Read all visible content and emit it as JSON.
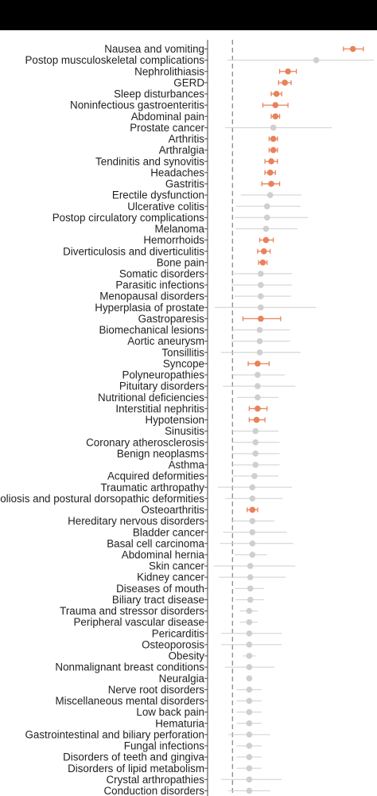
{
  "chart_data": {
    "type": "forest",
    "reference_line": 1,
    "xlim": [
      0.8,
      2.35
    ],
    "colors": {
      "significant": "#e8825a",
      "nonsignificant": "#cfcfcf",
      "reference": "#8a8a8a",
      "axis": "#444444"
    },
    "categories": [
      "Nausea and vomiting",
      "Postop musculoskeletal complications",
      "Nephrolithiasis",
      "GERD",
      "Sleep disturbances",
      "Noninfectious gastroenteritis",
      "Abdominal pain",
      "Prostate cancer",
      "Arthritis",
      "Arthralgia",
      "Tendinitis and synovitis",
      "Headaches",
      "Gastritis",
      "Erectile dysfunction",
      "Ulcerative colitis",
      "Postop circulatory complications",
      "Melanoma",
      "Hemorrhoids",
      "Diverticulosis and diverticulitis",
      "Bone pain",
      "Somatic disorders",
      "Parasitic infections",
      "Menopausal disorders",
      "Hyperplasia of prostate",
      "Gastroparesis",
      "Biomechanical lesions",
      "Aortic aneurysm",
      "Tonsillitis",
      "Syncope",
      "Polyneuropathies",
      "Pituitary disorders",
      "Nutritional deficiencies",
      "Interstitial nephritis",
      "Hypotension",
      "Sinusitis",
      "Coronary atherosclerosis",
      "Benign neoplasms",
      "Asthma",
      "Acquired deformities",
      "Traumatic arthropathy",
      "Scoliosis and postural dorsopathic deformities",
      "Osteoarthritis",
      "Hereditary nervous disorders",
      "Bladder cancer",
      "Basal cell carcinoma",
      "Abdominal hernia",
      "Skin cancer",
      "Kidney cancer",
      "Diseases of mouth",
      "Biliary tract disease",
      "Trauma and stressor disorders",
      "Peripheral vascular disease",
      "Pericarditis",
      "Osteoporosis",
      "Obesity",
      "Nonmalignant breast conditions",
      "Neuralgia",
      "Nerve root disorders",
      "Miscellaneous mental disorders",
      "Low back pain",
      "Hematuria",
      "Gastrointestinal and biliary perforation",
      "Fungal infections",
      "Disorders of teeth and gingiva",
      "Disorders of lipid metabolism",
      "Crystal arthropathies",
      "Conduction disorders"
    ],
    "estimates": [
      {
        "est": 2.15,
        "lo": 2.06,
        "hi": 2.25,
        "sig": true
      },
      {
        "est": 1.8,
        "lo": 0.95,
        "hi": 2.35,
        "sig": false
      },
      {
        "est": 1.53,
        "lo": 1.45,
        "hi": 1.61,
        "sig": true
      },
      {
        "est": 1.5,
        "lo": 1.44,
        "hi": 1.56,
        "sig": true
      },
      {
        "est": 1.42,
        "lo": 1.37,
        "hi": 1.47,
        "sig": true
      },
      {
        "est": 1.41,
        "lo": 1.29,
        "hi": 1.53,
        "sig": true
      },
      {
        "est": 1.41,
        "lo": 1.37,
        "hi": 1.45,
        "sig": true
      },
      {
        "est": 1.39,
        "lo": 0.93,
        "hi": 1.95,
        "sig": false
      },
      {
        "est": 1.39,
        "lo": 1.35,
        "hi": 1.43,
        "sig": true
      },
      {
        "est": 1.39,
        "lo": 1.35,
        "hi": 1.43,
        "sig": true
      },
      {
        "est": 1.37,
        "lo": 1.31,
        "hi": 1.43,
        "sig": true
      },
      {
        "est": 1.36,
        "lo": 1.31,
        "hi": 1.41,
        "sig": true
      },
      {
        "est": 1.37,
        "lo": 1.28,
        "hi": 1.45,
        "sig": true
      },
      {
        "est": 1.36,
        "lo": 1.08,
        "hi": 1.66,
        "sig": false
      },
      {
        "est": 1.33,
        "lo": 1.03,
        "hi": 1.65,
        "sig": false
      },
      {
        "est": 1.33,
        "lo": 1.02,
        "hi": 1.72,
        "sig": false
      },
      {
        "est": 1.32,
        "lo": 1.03,
        "hi": 1.62,
        "sig": false
      },
      {
        "est": 1.32,
        "lo": 1.26,
        "hi": 1.39,
        "sig": true
      },
      {
        "est": 1.3,
        "lo": 1.24,
        "hi": 1.36,
        "sig": true
      },
      {
        "est": 1.29,
        "lo": 1.25,
        "hi": 1.33,
        "sig": true
      },
      {
        "est": 1.27,
        "lo": 0.99,
        "hi": 1.57,
        "sig": false
      },
      {
        "est": 1.27,
        "lo": 0.99,
        "hi": 1.57,
        "sig": false
      },
      {
        "est": 1.27,
        "lo": 1.02,
        "hi": 1.56,
        "sig": false
      },
      {
        "est": 1.27,
        "lo": 0.83,
        "hi": 1.8,
        "sig": false
      },
      {
        "est": 1.27,
        "lo": 1.1,
        "hi": 1.46,
        "sig": true
      },
      {
        "est": 1.26,
        "lo": 0.99,
        "hi": 1.55,
        "sig": false
      },
      {
        "est": 1.26,
        "lo": 0.99,
        "hi": 1.55,
        "sig": false
      },
      {
        "est": 1.26,
        "lo": 0.89,
        "hi": 1.65,
        "sig": false
      },
      {
        "est": 1.24,
        "lo": 1.15,
        "hi": 1.35,
        "sig": true
      },
      {
        "est": 1.24,
        "lo": 1.0,
        "hi": 1.5,
        "sig": false
      },
      {
        "est": 1.24,
        "lo": 0.91,
        "hi": 1.6,
        "sig": false
      },
      {
        "est": 1.24,
        "lo": 1.04,
        "hi": 1.44,
        "sig": false
      },
      {
        "est": 1.24,
        "lo": 1.16,
        "hi": 1.33,
        "sig": true
      },
      {
        "est": 1.23,
        "lo": 1.16,
        "hi": 1.31,
        "sig": true
      },
      {
        "est": 1.22,
        "lo": 1.0,
        "hi": 1.44,
        "sig": false
      },
      {
        "est": 1.22,
        "lo": 1.0,
        "hi": 1.45,
        "sig": false
      },
      {
        "est": 1.22,
        "lo": 1.0,
        "hi": 1.45,
        "sig": false
      },
      {
        "est": 1.22,
        "lo": 1.0,
        "hi": 1.45,
        "sig": false
      },
      {
        "est": 1.21,
        "lo": 1.0,
        "hi": 1.44,
        "sig": false
      },
      {
        "est": 1.19,
        "lo": 0.86,
        "hi": 1.57,
        "sig": false
      },
      {
        "est": 1.19,
        "lo": 0.93,
        "hi": 1.48,
        "sig": false
      },
      {
        "est": 1.19,
        "lo": 1.14,
        "hi": 1.24,
        "sig": true
      },
      {
        "est": 1.19,
        "lo": 0.99,
        "hi": 1.4,
        "sig": false
      },
      {
        "est": 1.19,
        "lo": 0.91,
        "hi": 1.52,
        "sig": false
      },
      {
        "est": 1.19,
        "lo": 0.88,
        "hi": 1.58,
        "sig": false
      },
      {
        "est": 1.19,
        "lo": 1.02,
        "hi": 1.33,
        "sig": false
      },
      {
        "est": 1.17,
        "lo": 0.82,
        "hi": 1.6,
        "sig": false
      },
      {
        "est": 1.17,
        "lo": 0.87,
        "hi": 1.51,
        "sig": false
      },
      {
        "est": 1.17,
        "lo": 1.02,
        "hi": 1.3,
        "sig": false
      },
      {
        "est": 1.17,
        "lo": 1.03,
        "hi": 1.3,
        "sig": false
      },
      {
        "est": 1.16,
        "lo": 1.07,
        "hi": 1.24,
        "sig": false
      },
      {
        "est": 1.16,
        "lo": 1.07,
        "hi": 1.24,
        "sig": false
      },
      {
        "est": 1.16,
        "lo": 0.89,
        "hi": 1.47,
        "sig": false
      },
      {
        "est": 1.16,
        "lo": 0.89,
        "hi": 1.47,
        "sig": false
      },
      {
        "est": 1.16,
        "lo": 1.1,
        "hi": 1.22,
        "sig": false
      },
      {
        "est": 1.16,
        "lo": 0.93,
        "hi": 1.4,
        "sig": false
      },
      {
        "est": 1.16,
        "lo": 1.13,
        "hi": 1.19,
        "sig": false
      },
      {
        "est": 1.16,
        "lo": 1.04,
        "hi": 1.28,
        "sig": false
      },
      {
        "est": 1.16,
        "lo": 1.04,
        "hi": 1.28,
        "sig": false
      },
      {
        "est": 1.16,
        "lo": 1.04,
        "hi": 1.28,
        "sig": false
      },
      {
        "est": 1.16,
        "lo": 1.04,
        "hi": 1.28,
        "sig": false
      },
      {
        "est": 1.16,
        "lo": 0.96,
        "hi": 1.36,
        "sig": false
      },
      {
        "est": 1.16,
        "lo": 1.04,
        "hi": 1.28,
        "sig": false
      },
      {
        "est": 1.16,
        "lo": 1.04,
        "hi": 1.28,
        "sig": false
      },
      {
        "est": 1.16,
        "lo": 1.04,
        "hi": 1.28,
        "sig": false
      },
      {
        "est": 1.16,
        "lo": 0.89,
        "hi": 1.47,
        "sig": false
      },
      {
        "est": 1.16,
        "lo": 0.96,
        "hi": 1.36,
        "sig": false
      }
    ]
  }
}
